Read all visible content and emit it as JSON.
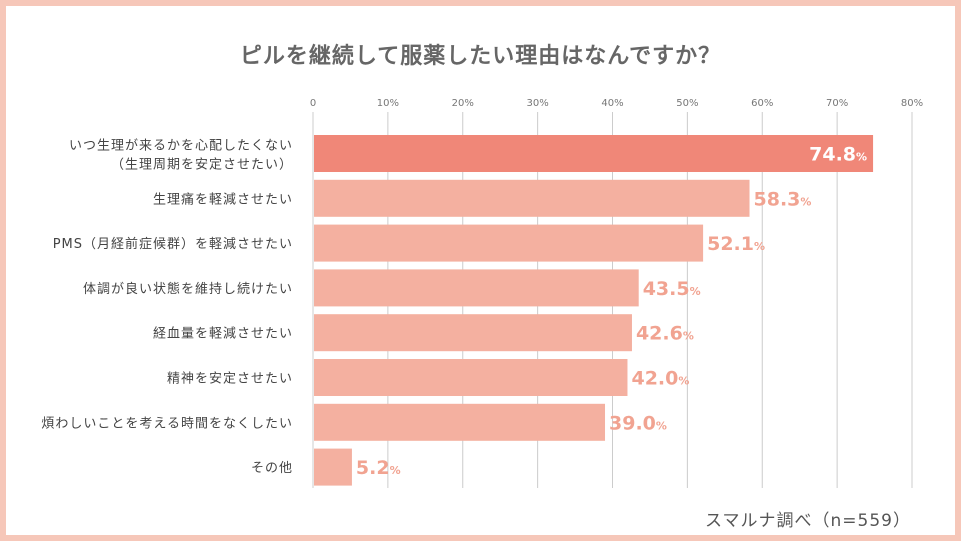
{
  "chart_data": {
    "type": "bar",
    "orientation": "horizontal",
    "title": "ピルを継続して服薬したい理由はなんですか？",
    "source": "スマルナ調べ（n=559）",
    "xlim": [
      0,
      80
    ],
    "ticks": [
      "0",
      "10%",
      "20%",
      "30%",
      "40%",
      "50%",
      "60%",
      "70%",
      "80%"
    ],
    "tick_values": [
      0,
      10,
      20,
      30,
      40,
      50,
      60,
      70,
      80
    ],
    "grid": true,
    "categories": [
      [
        "いつ生理が来るかを心配したくない",
        "（生理周期を安定させたい）"
      ],
      [
        "生理痛を軽減させたい"
      ],
      [
        "PMS（月経前症候群）を軽減させたい"
      ],
      [
        "体調が良い状態を維持し続けたい"
      ],
      [
        "経血量を軽減させたい"
      ],
      [
        "精神を安定させたい"
      ],
      [
        "煩わしいことを考える時間をなくしたい"
      ],
      [
        "その他"
      ]
    ],
    "values": [
      74.8,
      58.3,
      52.1,
      43.5,
      42.6,
      42.0,
      39.0,
      5.2
    ],
    "value_labels": [
      "74.8",
      "58.3",
      "52.1",
      "43.5",
      "42.6",
      "42.0",
      "39.0",
      "5.2"
    ],
    "unit": "%",
    "colors": {
      "highlight_bar": "#f08778",
      "bar": "#f4b0a0",
      "highlight_label": "#ffffff",
      "label": "#f1a391",
      "grid": "#cccccc"
    }
  }
}
